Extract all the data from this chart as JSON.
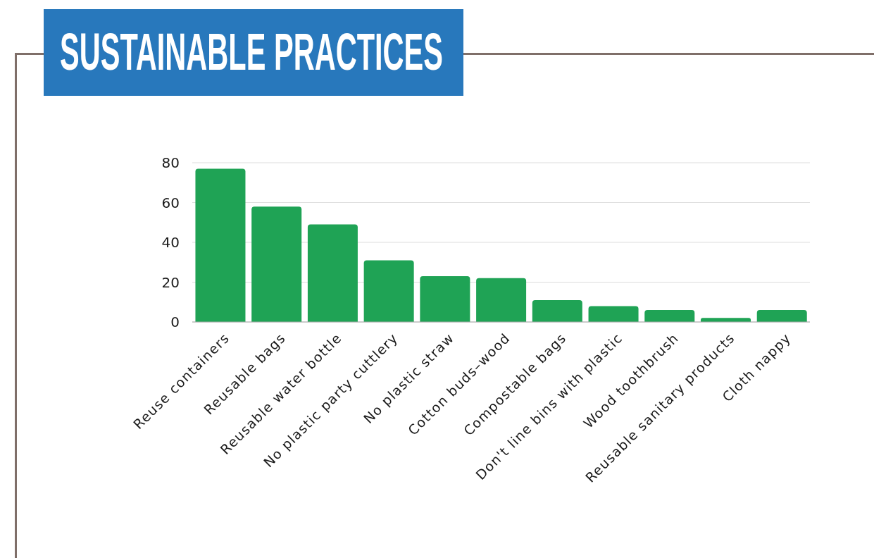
{
  "chart_data": {
    "type": "bar",
    "title": "SUSTAINABLE PRACTICES",
    "categories": [
      "Reuse containers",
      "Reusable bags",
      "Reusable water bottle",
      "No plastic party cuttlery",
      "No plastic straw",
      "Cotton buds–wood",
      "Compostable bags",
      "Don't line bins with plastic",
      "Wood toothbrush",
      "Reusable sanitary products",
      "Cloth nappy"
    ],
    "values": [
      77,
      58,
      49,
      31,
      23,
      22,
      11,
      8,
      6,
      2,
      6
    ],
    "color": "#1fa355",
    "ylim": [
      0,
      80
    ],
    "yticks": [
      0,
      20,
      40,
      60,
      80
    ],
    "grid": "y"
  }
}
